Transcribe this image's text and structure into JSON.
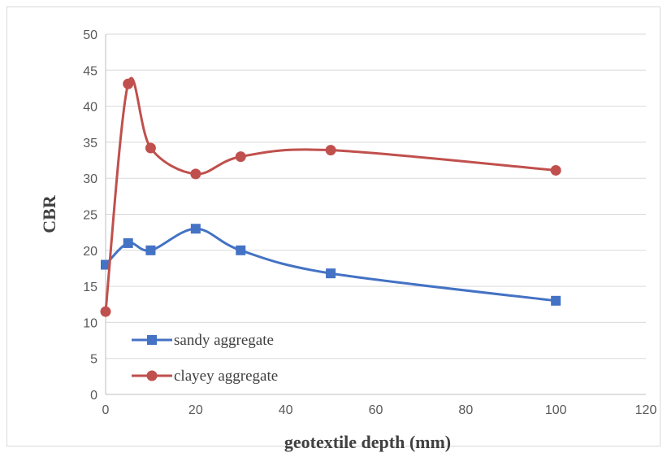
{
  "chart_data": {
    "type": "line",
    "title": "",
    "xlabel": "geotextile depth (mm)",
    "ylabel": "CBR",
    "xlim": [
      0,
      120
    ],
    "ylim": [
      0,
      50
    ],
    "x_ticks": [
      0,
      20,
      40,
      60,
      80,
      100,
      120
    ],
    "y_ticks": [
      0,
      5,
      10,
      15,
      20,
      25,
      30,
      35,
      40,
      45,
      50
    ],
    "grid": "horizontal",
    "smooth": true,
    "legend": "inside-bottom-left",
    "series": [
      {
        "name": "sandy aggregate",
        "color": "#4472C4",
        "marker": "square",
        "x": [
          0,
          5,
          10,
          20,
          30,
          50,
          100
        ],
        "y": [
          18,
          21,
          20,
          23,
          20,
          16.8,
          13
        ]
      },
      {
        "name": "clayey aggregate",
        "color": "#C0504D",
        "marker": "circle",
        "x": [
          0,
          5,
          10,
          20,
          30,
          50,
          100
        ],
        "y": [
          11.5,
          43.1,
          34.2,
          30.6,
          33,
          33.9,
          31.1
        ]
      }
    ]
  }
}
